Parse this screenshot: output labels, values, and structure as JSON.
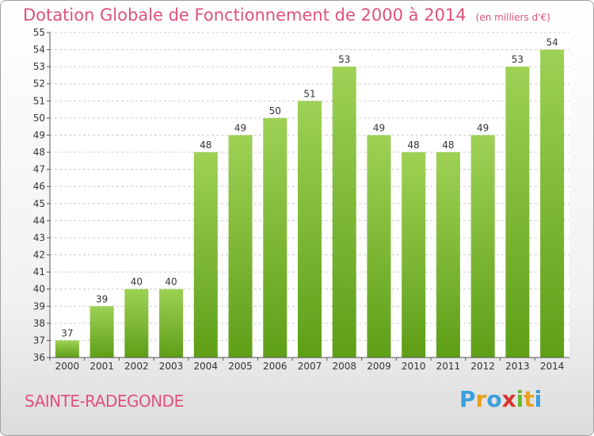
{
  "header": {
    "title": "Dotation Globale de Fonctionnement de 2000 à 2014",
    "subtitle": "(en milliers d'€)"
  },
  "footer": {
    "place": "SAINTE-RADEGONDE",
    "logo": "Proxiti"
  },
  "colors": {
    "bar_top": "#9ed155",
    "bar_bottom": "#5e9f17",
    "title": "#e0517c"
  },
  "chart_data": {
    "type": "bar",
    "title": "Dotation Globale de Fonctionnement de 2000 à 2014",
    "subtitle": "(en milliers d'€)",
    "xlabel": "",
    "ylabel": "",
    "categories": [
      "2000",
      "2001",
      "2002",
      "2003",
      "2004",
      "2005",
      "2006",
      "2007",
      "2008",
      "2009",
      "2010",
      "2011",
      "2012",
      "2013",
      "2014"
    ],
    "values": [
      37,
      39,
      40,
      40,
      48,
      49,
      50,
      51,
      53,
      49,
      48,
      48,
      49,
      53,
      54
    ],
    "ylim": [
      36,
      55
    ],
    "yticks": [
      36,
      37,
      38,
      39,
      40,
      41,
      42,
      43,
      44,
      45,
      46,
      47,
      48,
      49,
      50,
      51,
      52,
      53,
      54,
      55
    ],
    "grid": true,
    "legend": "none"
  }
}
